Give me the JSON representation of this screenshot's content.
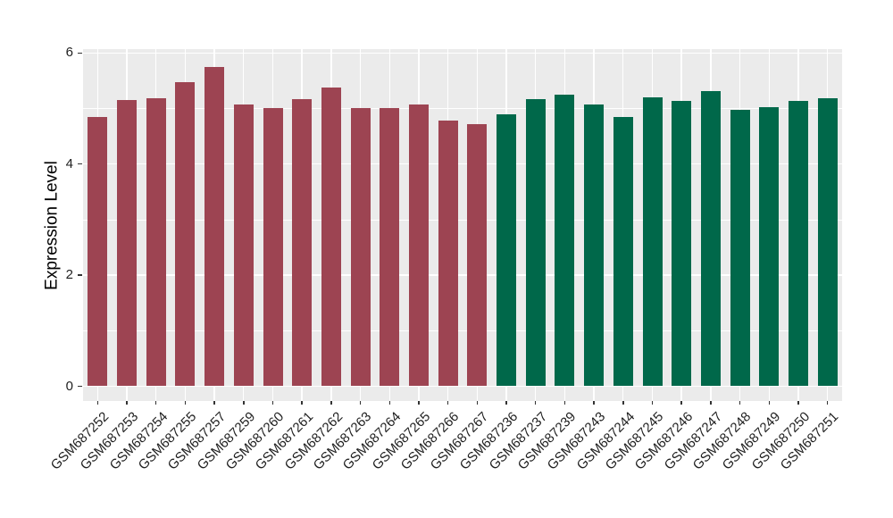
{
  "chart_data": {
    "type": "bar",
    "title": "",
    "xlabel": "",
    "ylabel": "Expression Level",
    "ylim": [
      -0.28,
      6.07
    ],
    "yticks_major": [
      0,
      2,
      4,
      6
    ],
    "ytick_labels": [
      "0",
      "2",
      "4",
      "6"
    ],
    "yticks_minor": [
      1,
      3,
      5
    ],
    "grid": "white major and minor horizontal lines plus vertical line at each category center, on gray panel",
    "legend_position": "none",
    "panel_bg": "#EBEBEB",
    "grid_color": "#FFFFFF",
    "axis_text_color": "#1F1F1F",
    "categories": [
      "GSM687252",
      "GSM687253",
      "GSM687254",
      "GSM687255",
      "GSM687257",
      "GSM687259",
      "GSM687260",
      "GSM687261",
      "GSM687262",
      "GSM687263",
      "GSM687264",
      "GSM687265",
      "GSM687266",
      "GSM687267",
      "GSM687236",
      "GSM687237",
      "GSM687239",
      "GSM687243",
      "GSM687244",
      "GSM687245",
      "GSM687246",
      "GSM687247",
      "GSM687248",
      "GSM687249",
      "GSM687250",
      "GSM687251"
    ],
    "values": [
      4.85,
      5.15,
      5.18,
      5.48,
      5.75,
      5.08,
      5.01,
      5.17,
      5.38,
      5.01,
      5.01,
      5.08,
      4.79,
      4.72,
      4.9,
      5.17,
      5.25,
      5.08,
      4.85,
      5.2,
      5.14,
      5.31,
      4.97,
      5.02,
      5.14,
      5.18
    ],
    "bar_groups": [
      "A",
      "A",
      "A",
      "A",
      "A",
      "A",
      "A",
      "A",
      "A",
      "A",
      "A",
      "A",
      "A",
      "A",
      "B",
      "B",
      "B",
      "B",
      "B",
      "B",
      "B",
      "B",
      "B",
      "B",
      "B",
      "B"
    ],
    "group_colors": {
      "A": "#9D4452",
      "B": "#00684A"
    },
    "bar_width_ratio": 0.67
  }
}
